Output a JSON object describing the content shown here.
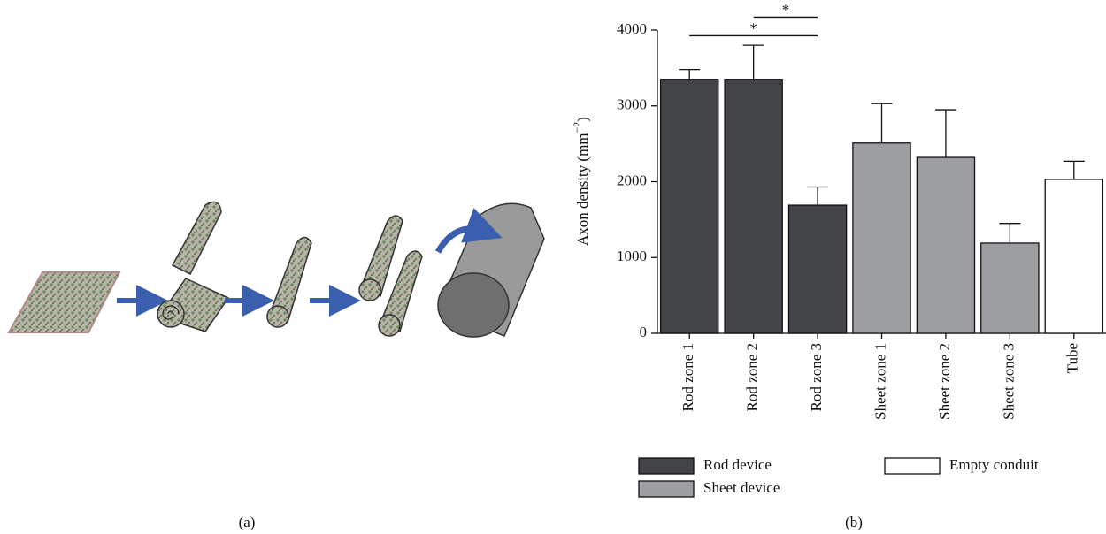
{
  "panel_a_label": "(a)",
  "chart_data": {
    "type": "bar",
    "panel_label": "(b)",
    "ylabel": {
      "text": "Axon density (mm",
      "superscript": "−2",
      "suffix": ")"
    },
    "categories": [
      "Rod zone 1",
      "Rod zone 2",
      "Rod zone 3",
      "Sheet zone 1",
      "Sheet zone 2",
      "Sheet zone 3",
      "Tube"
    ],
    "series": [
      {
        "name": "Rod device",
        "color": "#434447",
        "values": [
          3350,
          3350,
          1690,
          null,
          null,
          null,
          null
        ],
        "errors": [
          130,
          450,
          240,
          null,
          null,
          null,
          null
        ]
      },
      {
        "name": "Sheet device",
        "color": "#9c9ea1",
        "values": [
          null,
          null,
          null,
          2510,
          2320,
          1190,
          null
        ],
        "errors": [
          null,
          null,
          null,
          520,
          630,
          260,
          null
        ]
      },
      {
        "name": "Empty conduit",
        "color": "#ffffff",
        "values": [
          null,
          null,
          null,
          null,
          null,
          null,
          2030
        ],
        "errors": [
          null,
          null,
          null,
          null,
          null,
          null,
          240
        ]
      }
    ],
    "ylim": [
      0,
      4000
    ],
    "yticks": [
      0,
      1000,
      2000,
      3000,
      4000
    ],
    "annotations": [
      {
        "text": "*",
        "from": "Rod zone 1",
        "to": "Rod zone 3",
        "y": 3925
      },
      {
        "text": "*",
        "from": "Rod zone 2",
        "to": "Rod zone 3",
        "y": 4170
      }
    ]
  }
}
